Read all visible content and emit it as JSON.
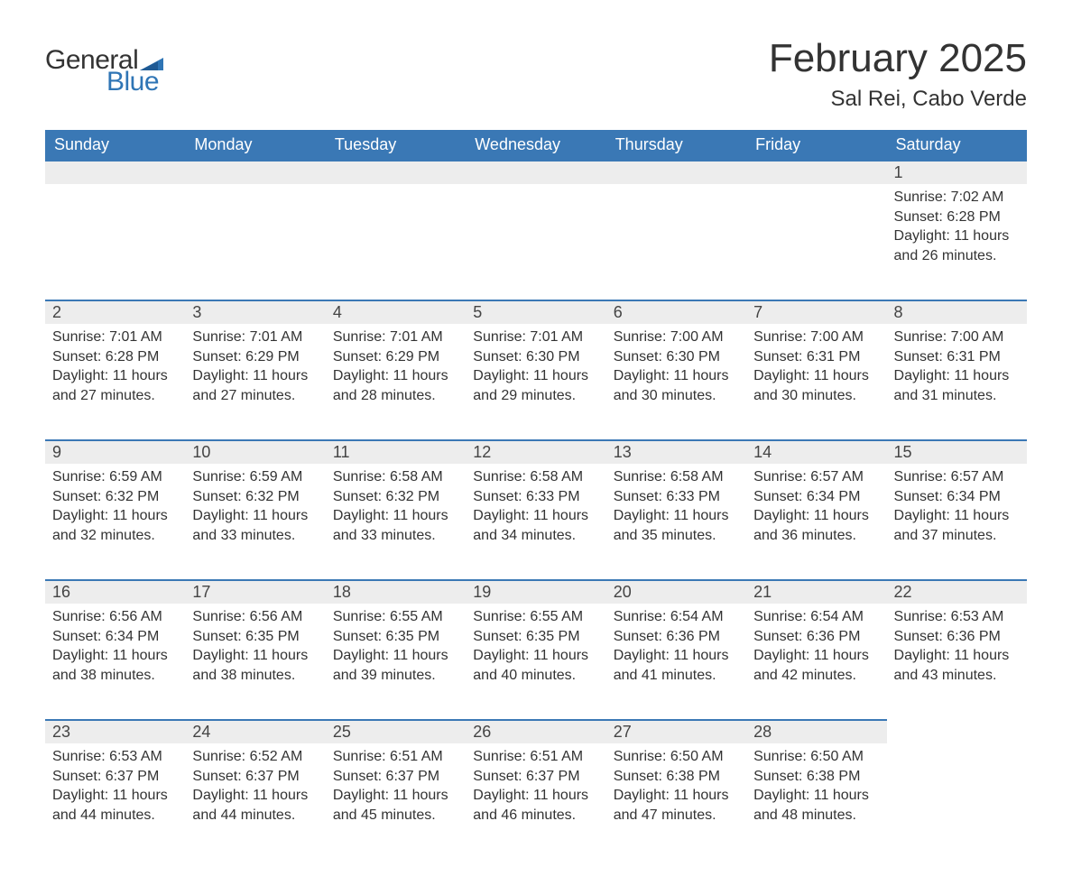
{
  "brand": {
    "part1": "General",
    "part2": "Blue",
    "accent_color": "#2f75b5"
  },
  "title": "February 2025",
  "location": "Sal Rei, Cabo Verde",
  "header_bg": "#3a78b5",
  "header_fg": "#ffffff",
  "daynum_bg": "#ededed",
  "daynum_border": "#3a78b5",
  "text_color": "#333333",
  "font_family": "Arial, Helvetica, sans-serif",
  "days_of_week": [
    "Sunday",
    "Monday",
    "Tuesday",
    "Wednesday",
    "Thursday",
    "Friday",
    "Saturday"
  ],
  "weeks": [
    [
      null,
      null,
      null,
      null,
      null,
      null,
      {
        "n": "1",
        "sunrise": "7:02 AM",
        "sunset": "6:28 PM",
        "dl_h": "11",
        "dl_m": "26"
      }
    ],
    [
      {
        "n": "2",
        "sunrise": "7:01 AM",
        "sunset": "6:28 PM",
        "dl_h": "11",
        "dl_m": "27"
      },
      {
        "n": "3",
        "sunrise": "7:01 AM",
        "sunset": "6:29 PM",
        "dl_h": "11",
        "dl_m": "27"
      },
      {
        "n": "4",
        "sunrise": "7:01 AM",
        "sunset": "6:29 PM",
        "dl_h": "11",
        "dl_m": "28"
      },
      {
        "n": "5",
        "sunrise": "7:01 AM",
        "sunset": "6:30 PM",
        "dl_h": "11",
        "dl_m": "29"
      },
      {
        "n": "6",
        "sunrise": "7:00 AM",
        "sunset": "6:30 PM",
        "dl_h": "11",
        "dl_m": "30"
      },
      {
        "n": "7",
        "sunrise": "7:00 AM",
        "sunset": "6:31 PM",
        "dl_h": "11",
        "dl_m": "30"
      },
      {
        "n": "8",
        "sunrise": "7:00 AM",
        "sunset": "6:31 PM",
        "dl_h": "11",
        "dl_m": "31"
      }
    ],
    [
      {
        "n": "9",
        "sunrise": "6:59 AM",
        "sunset": "6:32 PM",
        "dl_h": "11",
        "dl_m": "32"
      },
      {
        "n": "10",
        "sunrise": "6:59 AM",
        "sunset": "6:32 PM",
        "dl_h": "11",
        "dl_m": "33"
      },
      {
        "n": "11",
        "sunrise": "6:58 AM",
        "sunset": "6:32 PM",
        "dl_h": "11",
        "dl_m": "33"
      },
      {
        "n": "12",
        "sunrise": "6:58 AM",
        "sunset": "6:33 PM",
        "dl_h": "11",
        "dl_m": "34"
      },
      {
        "n": "13",
        "sunrise": "6:58 AM",
        "sunset": "6:33 PM",
        "dl_h": "11",
        "dl_m": "35"
      },
      {
        "n": "14",
        "sunrise": "6:57 AM",
        "sunset": "6:34 PM",
        "dl_h": "11",
        "dl_m": "36"
      },
      {
        "n": "15",
        "sunrise": "6:57 AM",
        "sunset": "6:34 PM",
        "dl_h": "11",
        "dl_m": "37"
      }
    ],
    [
      {
        "n": "16",
        "sunrise": "6:56 AM",
        "sunset": "6:34 PM",
        "dl_h": "11",
        "dl_m": "38"
      },
      {
        "n": "17",
        "sunrise": "6:56 AM",
        "sunset": "6:35 PM",
        "dl_h": "11",
        "dl_m": "38"
      },
      {
        "n": "18",
        "sunrise": "6:55 AM",
        "sunset": "6:35 PM",
        "dl_h": "11",
        "dl_m": "39"
      },
      {
        "n": "19",
        "sunrise": "6:55 AM",
        "sunset": "6:35 PM",
        "dl_h": "11",
        "dl_m": "40"
      },
      {
        "n": "20",
        "sunrise": "6:54 AM",
        "sunset": "6:36 PM",
        "dl_h": "11",
        "dl_m": "41"
      },
      {
        "n": "21",
        "sunrise": "6:54 AM",
        "sunset": "6:36 PM",
        "dl_h": "11",
        "dl_m": "42"
      },
      {
        "n": "22",
        "sunrise": "6:53 AM",
        "sunset": "6:36 PM",
        "dl_h": "11",
        "dl_m": "43"
      }
    ],
    [
      {
        "n": "23",
        "sunrise": "6:53 AM",
        "sunset": "6:37 PM",
        "dl_h": "11",
        "dl_m": "44"
      },
      {
        "n": "24",
        "sunrise": "6:52 AM",
        "sunset": "6:37 PM",
        "dl_h": "11",
        "dl_m": "44"
      },
      {
        "n": "25",
        "sunrise": "6:51 AM",
        "sunset": "6:37 PM",
        "dl_h": "11",
        "dl_m": "45"
      },
      {
        "n": "26",
        "sunrise": "6:51 AM",
        "sunset": "6:37 PM",
        "dl_h": "11",
        "dl_m": "46"
      },
      {
        "n": "27",
        "sunrise": "6:50 AM",
        "sunset": "6:38 PM",
        "dl_h": "11",
        "dl_m": "47"
      },
      {
        "n": "28",
        "sunrise": "6:50 AM",
        "sunset": "6:38 PM",
        "dl_h": "11",
        "dl_m": "48"
      },
      null
    ]
  ],
  "labels": {
    "sunrise": "Sunrise: ",
    "sunset": "Sunset: ",
    "daylight_prefix": "Daylight: ",
    "hours_word": " hours",
    "and_word": "and ",
    "minutes_word": " minutes."
  }
}
